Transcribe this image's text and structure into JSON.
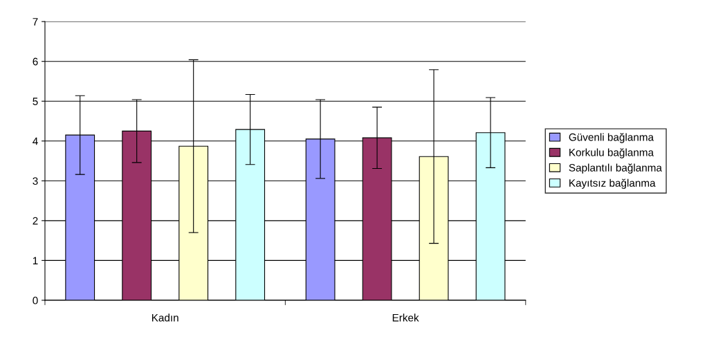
{
  "chart_data": {
    "type": "bar",
    "categories": [
      "Kadın",
      "Erkek"
    ],
    "series": [
      {
        "name": "Güvenli bağlanma",
        "color": "#9999ff",
        "values": [
          4.15,
          4.05
        ],
        "errors": [
          0.99,
          0.99
        ]
      },
      {
        "name": "Korkulu bağlanma",
        "color": "#993366",
        "values": [
          4.25,
          4.08
        ],
        "errors": [
          0.79,
          0.77
        ]
      },
      {
        "name": "Saplantılı bağlanma",
        "color": "#ffffcc",
        "values": [
          3.87,
          3.61
        ],
        "errors": [
          2.17,
          2.18
        ]
      },
      {
        "name": "Kayıtsız bağlanma",
        "color": "#ccffff",
        "values": [
          4.29,
          4.21
        ],
        "errors": [
          0.88,
          0.88
        ]
      }
    ],
    "ylim": [
      0,
      7
    ],
    "yticks": [
      0,
      1,
      2,
      3,
      4,
      5,
      6,
      7
    ],
    "grid": "y",
    "legend": "right"
  }
}
